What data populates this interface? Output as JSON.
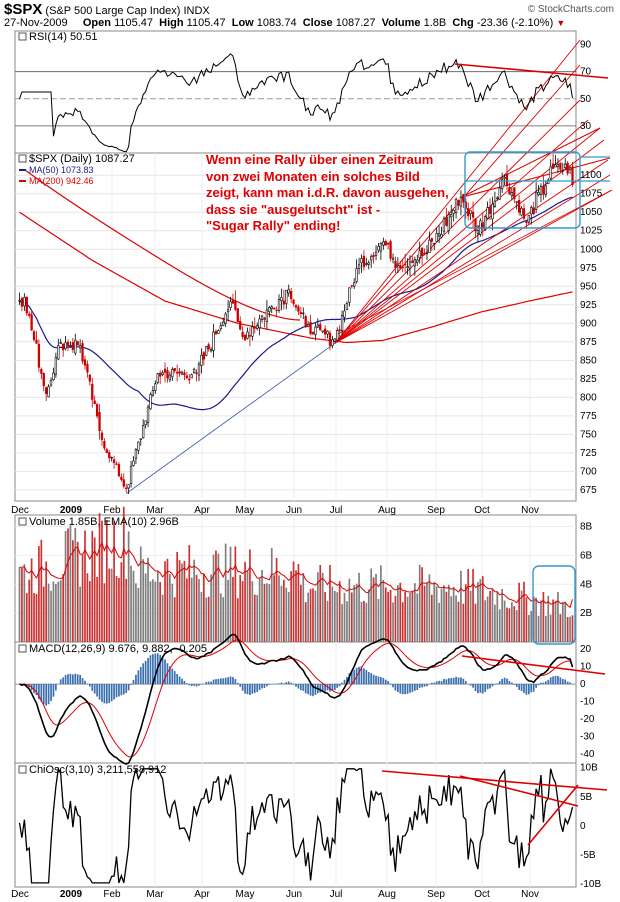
{
  "header": {
    "symbol": "$SPX",
    "name": "(S&P 500 Large Cap Index)",
    "exchange": "INDX",
    "date": "27-Nov-2009",
    "open_label": "Open",
    "open": "1105.47",
    "high_label": "High",
    "high": "1105.47",
    "low_label": "Low",
    "low": "1083.74",
    "close_label": "Close",
    "close": "1087.27",
    "volume_label": "Volume",
    "volume": "1.8B",
    "chg_label": "Chg",
    "chg": "-23.36 (-2.10%)",
    "brand": "© StockCharts.com"
  },
  "annotation": {
    "lines": [
      "Wenn eine Rally über einen Zeitraum",
      "von zwei Monaten ein solches Bild",
      "zeigt, kann man i.d.R. davon ausgehen,",
      "dass sie \"ausgelutscht\" ist -",
      "\"Sugar Rally\" ending!"
    ]
  },
  "colors": {
    "up": "#000000",
    "down": "#cc0000",
    "ma50": "#1a1a8c",
    "ma200": "#dd0000",
    "trend": "#dd0000",
    "box": "#3399cc",
    "volume_up": "#7f7f7f",
    "volume_down": "#cc3333",
    "macd_hist": "#3a6fb0"
  },
  "chart_data": [
    {
      "name": "RSI",
      "type": "line",
      "title": "RSI(14) 50.51",
      "ylim": [
        10,
        100
      ],
      "yticks": [
        "90",
        "70",
        "50",
        "30"
      ],
      "levels": [
        70,
        30
      ],
      "data_date_range": [
        "2009-01-02",
        "2009-11-27"
      ],
      "last_value": 50.51
    },
    {
      "name": "Price",
      "type": "candlestick",
      "legend": [
        "$SPX (Daily) 1087.27",
        "MA(50) 1073.83",
        "MA(200) 942.46"
      ],
      "ylim": [
        660,
        1130
      ],
      "yticks": [
        "1100",
        "1075",
        "1050",
        "1025",
        "1000",
        "975",
        "950",
        "925",
        "900",
        "875",
        "850",
        "825",
        "800",
        "775",
        "750",
        "725",
        "700",
        "675"
      ],
      "xticks": [
        "Dec",
        "2009",
        "Feb",
        "Mar",
        "Apr",
        "May",
        "Jun",
        "Jul",
        "Aug",
        "Sep",
        "Oct",
        "Nov"
      ],
      "anchors": [
        {
          "date": "2009-01-02",
          "close": 931
        },
        {
          "date": "2009-01-06",
          "close": 935
        },
        {
          "date": "2009-01-20",
          "close": 805
        },
        {
          "date": "2009-01-28",
          "close": 874
        },
        {
          "date": "2009-02-09",
          "close": 870
        },
        {
          "date": "2009-02-23",
          "close": 743
        },
        {
          "date": "2009-03-09",
          "close": 677
        },
        {
          "date": "2009-03-26",
          "close": 832
        },
        {
          "date": "2009-04-20",
          "close": 832
        },
        {
          "date": "2009-05-08",
          "close": 929
        },
        {
          "date": "2009-05-15",
          "close": 882
        },
        {
          "date": "2009-06-12",
          "close": 946
        },
        {
          "date": "2009-06-23",
          "close": 895
        },
        {
          "date": "2009-07-10",
          "close": 879
        },
        {
          "date": "2009-07-24",
          "close": 979
        },
        {
          "date": "2009-08-07",
          "close": 1010
        },
        {
          "date": "2009-08-17",
          "close": 980
        },
        {
          "date": "2009-09-02",
          "close": 995
        },
        {
          "date": "2009-09-23",
          "close": 1070
        },
        {
          "date": "2009-10-02",
          "close": 1025
        },
        {
          "date": "2009-10-19",
          "close": 1097
        },
        {
          "date": "2009-10-30",
          "close": 1036
        },
        {
          "date": "2009-11-16",
          "close": 1109
        },
        {
          "date": "2009-11-25",
          "close": 1110
        },
        {
          "date": "2009-11-27",
          "close": 1087.27
        }
      ],
      "ma50_last": 1073.83,
      "ma200_last": 942.46
    },
    {
      "name": "Volume",
      "type": "bar",
      "title": "Volume 1.85B, EMA(10) 2.96B",
      "ylim": [
        0,
        8.8
      ],
      "yticks": [
        "8B",
        "6B",
        "4B",
        "2B"
      ],
      "anchors": [
        {
          "date": "2009-01-02",
          "value": 4.4
        },
        {
          "date": "2009-03-10",
          "value": 8.0
        },
        {
          "date": "2009-06-15",
          "value": 6.0
        },
        {
          "date": "2009-09-15",
          "value": 5.3
        },
        {
          "date": "2009-11-27",
          "value": 1.85
        }
      ],
      "ema_last": 2.96
    },
    {
      "name": "MACD",
      "type": "line",
      "title": "MACD(12,26,9) 9.676, 9.882, -0.205",
      "ylim": [
        -45,
        24
      ],
      "yticks": [
        "20",
        "10",
        "0",
        "-10",
        "-20",
        "-30",
        "-40"
      ],
      "values": {
        "macd": 9.676,
        "signal": 9.882,
        "histogram": -0.205
      }
    },
    {
      "name": "ChiOsc",
      "type": "line",
      "title": "ChiOsc(3,10) 3,211,558,912",
      "ylim": [
        -10.5,
        10.8
      ],
      "yticks": [
        "10B",
        "5B",
        "0",
        "-5B",
        "-10B"
      ],
      "last_value": 3211558912
    }
  ]
}
